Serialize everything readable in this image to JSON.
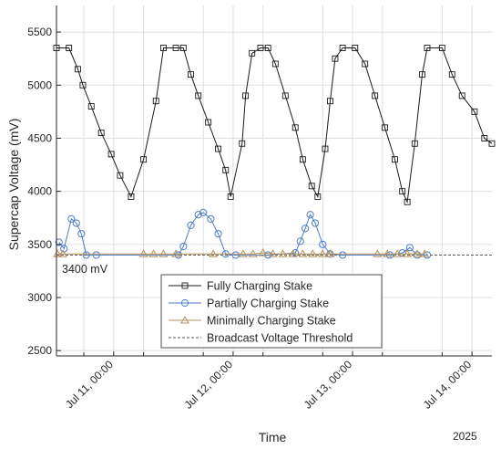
{
  "chart_data": {
    "type": "line",
    "title": "",
    "xlabel": "Time",
    "ylabel": "Supercap Voltage (mV)",
    "year_label": "2025",
    "x_unit": "hours since Jul 10, 2025 00:00",
    "xlim": [
      12.5,
      100
    ],
    "ylim": [
      2450,
      5750
    ],
    "x_ticks": [
      {
        "value": 24,
        "label": "Jul 11, 00:00"
      },
      {
        "value": 48,
        "label": "Jul 12, 00:00"
      },
      {
        "value": 72,
        "label": "Jul 13, 00:00"
      },
      {
        "value": 96,
        "label": "Jul 14, 00:00"
      }
    ],
    "x_minor_ticks": [
      18,
      30,
      42,
      54,
      66,
      78,
      90
    ],
    "y_ticks": [
      2500,
      3000,
      3500,
      4000,
      4500,
      5000,
      5500
    ],
    "grid": true,
    "legend_position": "bottom-center",
    "threshold": {
      "name": "Broadcast Voltage Threshold",
      "value": 3400,
      "label": "3400 mV",
      "color": "#555555"
    },
    "series": [
      {
        "name": "Fully Charging Stake",
        "marker": "square",
        "color": "#1a1a1a",
        "points": [
          [
            12.5,
            5350
          ],
          [
            15.0,
            5350
          ],
          [
            16.8,
            5150
          ],
          [
            17.8,
            5000
          ],
          [
            19.5,
            4800
          ],
          [
            21.5,
            4550
          ],
          [
            23.5,
            4350
          ],
          [
            25.3,
            4150
          ],
          [
            27.5,
            3950
          ],
          [
            30.0,
            4300
          ],
          [
            32.5,
            4850
          ],
          [
            34.0,
            5350
          ],
          [
            36.5,
            5350
          ],
          [
            38.0,
            5350
          ],
          [
            39.5,
            5100
          ],
          [
            41.0,
            4900
          ],
          [
            43.0,
            4650
          ],
          [
            45.0,
            4400
          ],
          [
            46.5,
            4200
          ],
          [
            47.5,
            3950
          ],
          [
            49.8,
            4450
          ],
          [
            50.5,
            4900
          ],
          [
            51.8,
            5300
          ],
          [
            53.5,
            5350
          ],
          [
            55.0,
            5350
          ],
          [
            56.5,
            5200
          ],
          [
            58.5,
            4900
          ],
          [
            60.5,
            4600
          ],
          [
            62.0,
            4300
          ],
          [
            63.8,
            4050
          ],
          [
            65.0,
            3950
          ],
          [
            66.5,
            4400
          ],
          [
            67.5,
            4850
          ],
          [
            68.5,
            5250
          ],
          [
            70.0,
            5350
          ],
          [
            72.5,
            5350
          ],
          [
            74.5,
            5200
          ],
          [
            76.5,
            4900
          ],
          [
            78.5,
            4600
          ],
          [
            80.5,
            4300
          ],
          [
            82.0,
            4000
          ],
          [
            83.0,
            3900
          ],
          [
            84.5,
            4450
          ],
          [
            86.0,
            5100
          ],
          [
            87.0,
            5350
          ],
          [
            90.0,
            5350
          ],
          [
            92.0,
            5100
          ],
          [
            94.0,
            4900
          ],
          [
            96.5,
            4750
          ],
          [
            98.5,
            4500
          ],
          [
            100.0,
            4450
          ]
        ]
      },
      {
        "name": "Partially Charging Stake",
        "marker": "circle",
        "color": "#4d7cc9",
        "points": [
          [
            13.0,
            3520
          ],
          [
            14.0,
            3460
          ],
          [
            15.5,
            3740
          ],
          [
            16.5,
            3700
          ],
          [
            17.5,
            3600
          ],
          [
            18.5,
            3400
          ],
          [
            20.5,
            3400
          ],
          [
            37.0,
            3400
          ],
          [
            38.0,
            3480
          ],
          [
            39.5,
            3680
          ],
          [
            41.0,
            3780
          ],
          [
            42.0,
            3800
          ],
          [
            43.5,
            3740
          ],
          [
            45.0,
            3600
          ],
          [
            46.5,
            3410
          ],
          [
            48.5,
            3400
          ],
          [
            55.0,
            3400
          ],
          [
            60.5,
            3420
          ],
          [
            61.5,
            3530
          ],
          [
            62.5,
            3650
          ],
          [
            63.5,
            3780
          ],
          [
            64.5,
            3700
          ],
          [
            66.0,
            3500
          ],
          [
            67.5,
            3410
          ],
          [
            70.0,
            3400
          ],
          [
            79.5,
            3400
          ],
          [
            82.0,
            3420
          ],
          [
            83.5,
            3470
          ],
          [
            85.0,
            3400
          ],
          [
            87.0,
            3400
          ]
        ]
      },
      {
        "name": "Minimally Charging Stake",
        "marker": "triangle",
        "color": "#b5915a",
        "points": [
          [
            12.7,
            3410
          ],
          [
            13.8,
            3410
          ],
          [
            30.0,
            3410
          ],
          [
            32.0,
            3410
          ],
          [
            34.0,
            3410
          ],
          [
            36.5,
            3410
          ],
          [
            44.0,
            3410
          ],
          [
            50.0,
            3410
          ],
          [
            52.0,
            3410
          ],
          [
            54.0,
            3420
          ],
          [
            56.0,
            3410
          ],
          [
            58.0,
            3410
          ],
          [
            60.0,
            3410
          ],
          [
            62.0,
            3410
          ],
          [
            64.0,
            3410
          ],
          [
            66.0,
            3410
          ],
          [
            67.5,
            3410
          ],
          [
            77.0,
            3410
          ],
          [
            79.0,
            3410
          ],
          [
            81.0,
            3410
          ],
          [
            83.0,
            3410
          ],
          [
            85.0,
            3410
          ],
          [
            86.5,
            3410
          ]
        ]
      }
    ]
  }
}
